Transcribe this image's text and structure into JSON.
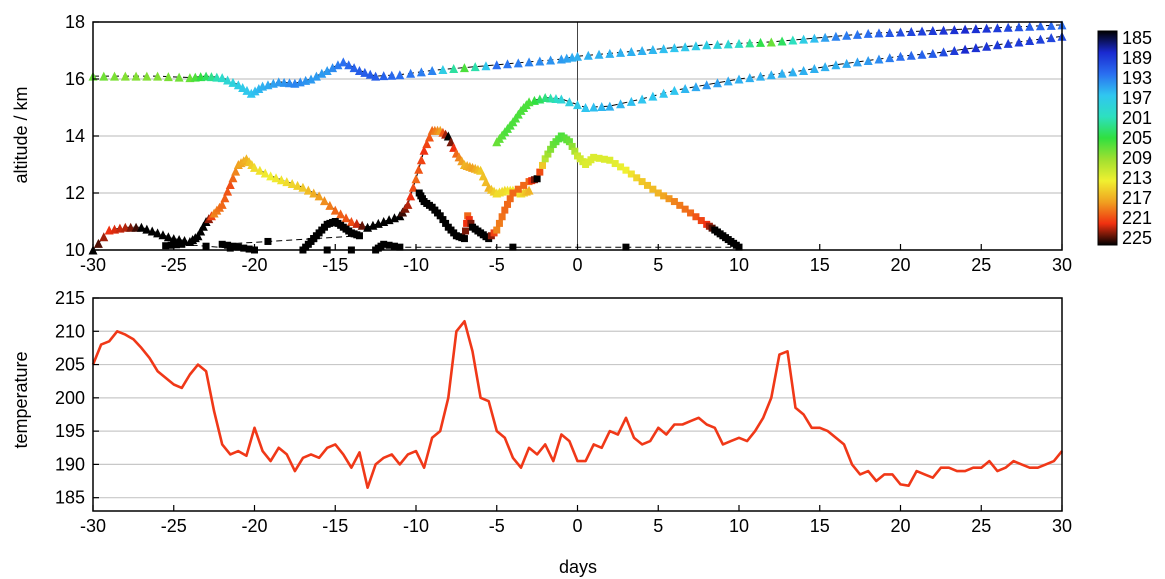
{
  "chart_data": [
    {
      "type": "scatter",
      "ylabel": "altitude / km",
      "xlim": [
        -30,
        30
      ],
      "ylim": [
        10,
        18
      ],
      "xticks": [
        "-30",
        "-25",
        "-20",
        "-15",
        "-10",
        "-5",
        "0",
        "5",
        "10",
        "15",
        "20",
        "25",
        "30"
      ],
      "yticks": [
        "10",
        "12",
        "14",
        "16",
        "18"
      ],
      "grid": "horizontal",
      "vline_x": 0,
      "colorbar": {
        "labels": [
          "185",
          "189",
          "193",
          "197",
          "201",
          "205",
          "209",
          "213",
          "217",
          "221",
          "225"
        ],
        "min": 185,
        "max": 225,
        "colors": [
          "#000000",
          "#1a2ad0",
          "#2a6ef0",
          "#30c6f0",
          "#2de0c0",
          "#30e040",
          "#a0e030",
          "#f0f030",
          "#f0a020",
          "#f03010",
          "#000000"
        ]
      },
      "series": [
        {
          "marker": "triangle",
          "points": [
            [
              -30,
              16.1,
              207
            ],
            [
              -28,
              16.1,
              208
            ],
            [
              -26,
              16.1,
              208
            ],
            [
              -24,
              16.05,
              207
            ],
            [
              -23,
              16.1,
              204
            ],
            [
              -22,
              16.05,
              200
            ],
            [
              -21,
              15.8,
              198
            ],
            [
              -20.2,
              15.5,
              197
            ],
            [
              -19.5,
              15.75,
              196
            ],
            [
              -18.5,
              15.9,
              195
            ],
            [
              -17.5,
              15.85,
              194
            ],
            [
              -16.5,
              16.0,
              195
            ],
            [
              -15.5,
              16.3,
              195
            ],
            [
              -14.5,
              16.6,
              193
            ],
            [
              -13.5,
              16.3,
              192
            ],
            [
              -12.5,
              16.1,
              192
            ],
            [
              -11,
              16.15,
              193
            ],
            [
              -9,
              16.3,
              194
            ],
            [
              -7,
              16.4,
              206
            ],
            [
              -5,
              16.5,
              193
            ],
            [
              -3,
              16.6,
              194
            ],
            [
              -1,
              16.7,
              195
            ],
            [
              0,
              16.8,
              196
            ],
            [
              2,
              16.9,
              196
            ],
            [
              4,
              17.0,
              196
            ],
            [
              6,
              17.1,
              197
            ],
            [
              8,
              17.2,
              198
            ],
            [
              10,
              17.25,
              200
            ],
            [
              12,
              17.3,
              207
            ],
            [
              14,
              17.4,
              198
            ],
            [
              16,
              17.5,
              194
            ],
            [
              18,
              17.6,
              193
            ],
            [
              20,
              17.65,
              191
            ],
            [
              22,
              17.7,
              190
            ],
            [
              24,
              17.75,
              189
            ],
            [
              26,
              17.8,
              190
            ],
            [
              28,
              17.85,
              192
            ],
            [
              30,
              17.9,
              193
            ]
          ]
        },
        {
          "marker": "triangle",
          "points": [
            [
              30,
              17.5,
              191
            ],
            [
              28,
              17.35,
              190
            ],
            [
              26,
              17.2,
              190
            ],
            [
              24,
              17.05,
              189
            ],
            [
              22,
              16.9,
              192
            ],
            [
              20,
              16.8,
              193
            ],
            [
              18,
              16.65,
              195
            ],
            [
              16,
              16.5,
              196
            ],
            [
              14,
              16.3,
              196
            ],
            [
              12,
              16.15,
              196
            ],
            [
              10,
              16.0,
              196
            ],
            [
              8,
              15.8,
              195
            ],
            [
              6,
              15.6,
              197
            ],
            [
              4,
              15.3,
              197
            ],
            [
              2,
              15.05,
              196
            ],
            [
              0.5,
              15.0,
              197
            ],
            [
              -1,
              15.3,
              199
            ],
            [
              -2,
              15.35,
              203
            ],
            [
              -3,
              15.2,
              206
            ],
            [
              -3.5,
              14.9,
              206
            ],
            [
              -4,
              14.5,
              206
            ],
            [
              -4.5,
              14.15,
              206
            ],
            [
              -5,
              13.8,
              207
            ]
          ]
        },
        {
          "marker": "triangle",
          "points": [
            [
              -30,
              10.0,
              225
            ],
            [
              -29,
              10.7,
              221
            ],
            [
              -28,
              10.8,
              222
            ],
            [
              -27,
              10.8,
              225
            ],
            [
              -26,
              10.6,
              225
            ],
            [
              -25,
              10.4,
              225
            ],
            [
              -24,
              10.3,
              225
            ],
            [
              -23.5,
              10.5,
              225
            ],
            [
              -23,
              11.0,
              225
            ],
            [
              -22.5,
              11.3,
              218
            ],
            [
              -22,
              11.6,
              219
            ],
            [
              -21.5,
              12.3,
              220
            ],
            [
              -21,
              13.0,
              217
            ],
            [
              -20.5,
              13.2,
              216
            ],
            [
              -20,
              12.9,
              214
            ],
            [
              -19,
              12.6,
              213
            ],
            [
              -18,
              12.4,
              214
            ],
            [
              -17,
              12.2,
              215
            ],
            [
              -16,
              11.9,
              217
            ],
            [
              -15,
              11.4,
              219
            ],
            [
              -14,
              11.0,
              220
            ],
            [
              -13,
              10.8,
              225
            ],
            [
              -12,
              11.0,
              225
            ],
            [
              -11,
              11.2,
              225
            ],
            [
              -10.5,
              11.6,
              222
            ],
            [
              -10,
              12.5,
              219
            ],
            [
              -9.5,
              13.5,
              221
            ],
            [
              -9,
              14.2,
              219
            ],
            [
              -8.5,
              14.2,
              217
            ],
            [
              -8,
              14.0,
              225
            ],
            [
              -7.5,
              13.4,
              219
            ],
            [
              -7,
              13.0,
              216
            ],
            [
              -6.5,
              12.9,
              217
            ],
            [
              -6,
              12.8,
              215
            ],
            [
              -5.5,
              12.2,
              216
            ],
            [
              -5,
              12.0,
              214
            ],
            [
              -4.5,
              12.1,
              214
            ],
            [
              -4,
              12.1,
              213
            ],
            [
              -3.5,
              12.0,
              214
            ],
            [
              -3,
              12.1,
              216
            ]
          ]
        },
        {
          "marker": "square",
          "points": [
            [
              -9.8,
              12.0,
              225
            ],
            [
              -9.5,
              11.7,
              225
            ],
            [
              -9,
              11.5,
              225
            ],
            [
              -8.5,
              11.2,
              225
            ],
            [
              -8,
              10.8,
              225
            ],
            [
              -7.5,
              10.5,
              225
            ],
            [
              -7,
              10.4,
              225
            ],
            [
              -6.8,
              11.2,
              219
            ],
            [
              -6.5,
              10.8,
              225
            ],
            [
              -6,
              10.6,
              225
            ],
            [
              -5.5,
              10.4,
              225
            ],
            [
              -5,
              10.7,
              218
            ],
            [
              -4.5,
              11.4,
              219
            ],
            [
              -4,
              12.0,
              219
            ],
            [
              -3,
              12.4,
              219
            ],
            [
              -2.5,
              12.5,
              225
            ],
            [
              -2,
              13.2,
              210
            ],
            [
              -1.5,
              13.7,
              207
            ],
            [
              -1,
              14.0,
              206
            ],
            [
              -0.5,
              13.8,
              207
            ],
            [
              0,
              13.3,
              211
            ],
            [
              0.5,
              13.0,
              212
            ],
            [
              1,
              13.25,
              212
            ],
            [
              2,
              13.15,
              212
            ],
            [
              3,
              12.8,
              213
            ],
            [
              4,
              12.4,
              215
            ],
            [
              5,
              12.0,
              216
            ],
            [
              6,
              11.7,
              218
            ],
            [
              7,
              11.3,
              219
            ],
            [
              8,
              10.9,
              221
            ],
            [
              8.5,
              10.7,
              225
            ],
            [
              9,
              10.5,
              225
            ],
            [
              9.5,
              10.3,
              225
            ],
            [
              10,
              10.1,
              225
            ],
            [
              -11,
              10.1,
              225
            ],
            [
              -12,
              10.2,
              225
            ],
            [
              -12.5,
              10.0,
              225
            ],
            [
              -17,
              10.0,
              225
            ],
            [
              -16.5,
              10.3,
              225
            ],
            [
              -16,
              10.6,
              225
            ],
            [
              -15.5,
              10.9,
              225
            ],
            [
              -15,
              11.0,
              225
            ],
            [
              -14.5,
              10.8,
              225
            ],
            [
              -14,
              10.6,
              225
            ],
            [
              -13.5,
              10.5,
              225
            ],
            [
              -22,
              10.2,
              225
            ],
            [
              -21,
              10.1,
              225
            ],
            [
              -20,
              10.0,
              225
            ],
            [
              -24.5,
              10.2,
              225
            ],
            [
              -25.5,
              10.15,
              225
            ]
          ]
        }
      ]
    },
    {
      "type": "line",
      "xlabel": "days",
      "ylabel": "temperature",
      "xlim": [
        -30,
        30
      ],
      "ylim": [
        183,
        215
      ],
      "xticks": [
        "-30",
        "-25",
        "-20",
        "-15",
        "-10",
        "-5",
        "0",
        "5",
        "10",
        "15",
        "20",
        "25",
        "30"
      ],
      "yticks": [
        "185",
        "190",
        "195",
        "200",
        "205",
        "210",
        "215"
      ],
      "grid": "horizontal",
      "color": "#f03818",
      "x": [
        -30,
        -29.5,
        -29,
        -28.5,
        -28,
        -27.5,
        -27,
        -26.5,
        -26,
        -25.5,
        -25,
        -24.5,
        -24,
        -23.5,
        -23,
        -22.5,
        -22,
        -21.5,
        -21,
        -20.5,
        -20,
        -19.5,
        -19,
        -18.5,
        -18,
        -17.5,
        -17,
        -16.5,
        -16,
        -15.5,
        -15,
        -14.5,
        -14,
        -13.5,
        -13,
        -12.5,
        -12,
        -11.5,
        -11,
        -10.5,
        -10,
        -9.5,
        -9,
        -8.5,
        -8,
        -7.5,
        -7,
        -6.5,
        -6,
        -5.5,
        -5,
        -4.5,
        -4,
        -3.5,
        -3,
        -2.5,
        -2,
        -1.5,
        -1,
        -0.5,
        0,
        0.5,
        1,
        1.5,
        2,
        2.5,
        3,
        3.5,
        4,
        4.5,
        5,
        5.5,
        6,
        6.5,
        7,
        7.5,
        8,
        8.5,
        9,
        9.5,
        10,
        10.5,
        11,
        11.5,
        12,
        12.5,
        13,
        13.5,
        14,
        14.5,
        15,
        15.5,
        16,
        16.5,
        17,
        17.5,
        18,
        18.5,
        19,
        19.5,
        20,
        20.5,
        21,
        21.5,
        22,
        22.5,
        23,
        23.5,
        24,
        24.5,
        25,
        25.5,
        26,
        26.5,
        27,
        27.5,
        28,
        28.5,
        29,
        29.5,
        30
      ],
      "values": [
        205,
        208,
        208.5,
        210,
        209.5,
        208.8,
        207.5,
        206,
        204,
        203,
        202,
        201.5,
        203.5,
        205,
        204,
        198,
        193,
        191.5,
        192,
        191.3,
        195.5,
        192,
        190.5,
        192.5,
        191.5,
        189,
        191,
        191.5,
        191,
        192.5,
        193,
        191.5,
        189.5,
        191.8,
        186.5,
        190,
        191,
        191.5,
        190,
        191.5,
        192,
        189.5,
        194,
        195,
        200,
        210,
        211.5,
        207,
        200,
        199.5,
        195,
        194,
        191,
        189.5,
        192.5,
        191.5,
        193,
        190.5,
        194.5,
        193.5,
        190.5,
        190.5,
        193,
        192.5,
        195,
        194.5,
        197,
        194,
        193,
        193.5,
        195.5,
        194.5,
        196,
        196,
        196.5,
        197,
        196,
        195.5,
        193,
        193.5,
        194,
        193.5,
        195,
        197,
        200,
        206.5,
        207,
        198.5,
        197.5,
        195.5,
        195.5,
        195,
        194,
        193,
        190,
        188.5,
        189,
        187.5,
        188.5,
        188.5,
        187,
        186.8,
        189,
        188.5,
        188,
        189.5,
        189.5,
        189,
        189,
        189.5,
        189.5,
        190.5,
        189,
        189.5,
        190.5,
        190,
        189.5,
        189.5,
        190,
        190.5,
        192
      ]
    }
  ]
}
